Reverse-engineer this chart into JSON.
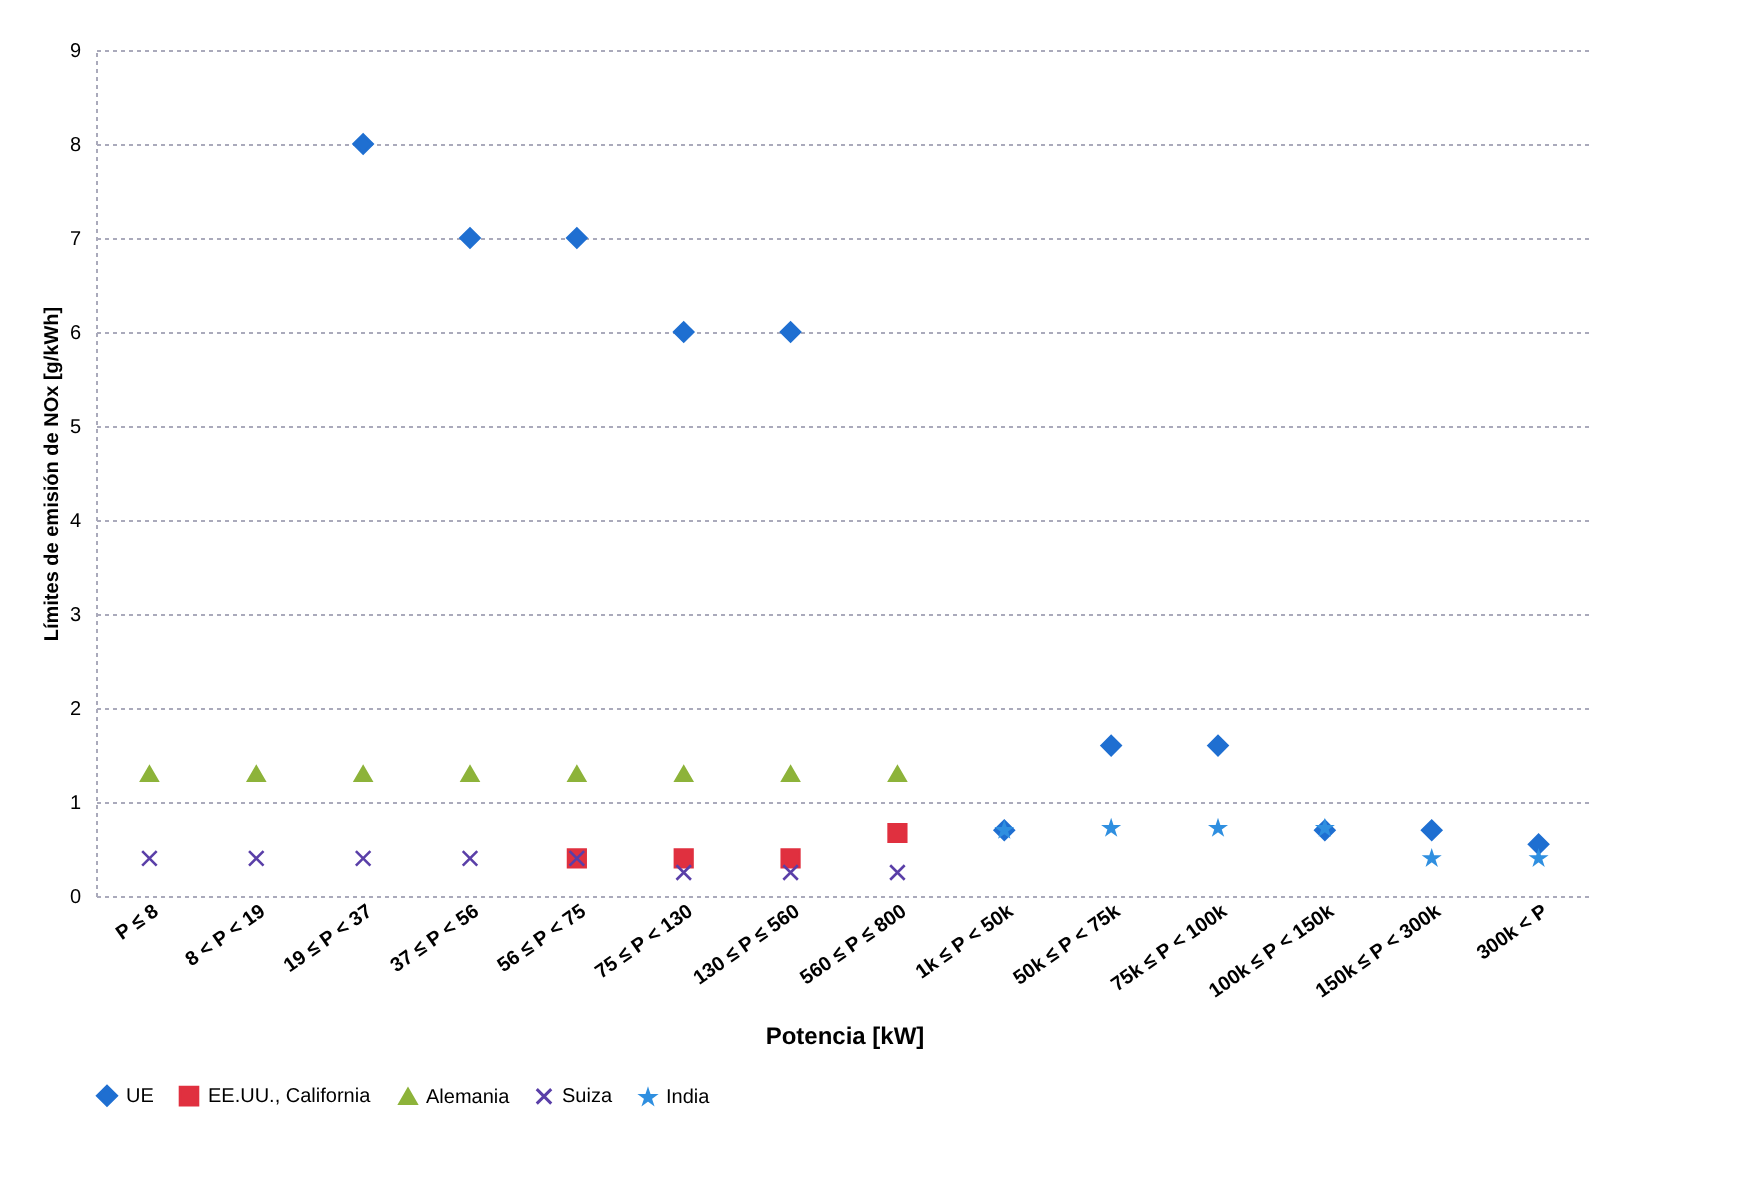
{
  "chart_data": {
    "type": "scatter",
    "xlabel": "Potencia [kW]",
    "ylabel": "Límites de emisión de NOx [g/kWh]",
    "categories": [
      "P ≤ 8",
      "8 < P < 19",
      "19 ≤ P < 37",
      "37 ≤ P < 56",
      "56 ≤ P < 75",
      "75 ≤ P < 130",
      "130 ≤ P ≤ 560",
      "560 ≤ P ≤ 800",
      "1k ≤ P < 50k",
      "50k ≤ P < 75k",
      "75k ≤ P < 100k",
      "100k ≤ P < 150k",
      "150k ≤ P < 300k",
      "300k < P"
    ],
    "series": [
      {
        "name": "UE",
        "color": "#1f6fd1",
        "marker": "diamond",
        "values": [
          null,
          null,
          8,
          7,
          7,
          6,
          6,
          null,
          0.7,
          1.6,
          1.6,
          0.7,
          0.7,
          0.55
        ]
      },
      {
        "name": "EE.UU., California",
        "color": "#e0303f",
        "marker": "square",
        "values": [
          null,
          null,
          null,
          null,
          0.4,
          0.4,
          0.4,
          0.67,
          null,
          null,
          null,
          null,
          null,
          null
        ]
      },
      {
        "name": "Alemania",
        "color": "#8db33a",
        "marker": "triangle",
        "values": [
          1.3,
          1.3,
          1.3,
          1.3,
          1.3,
          1.3,
          1.3,
          1.3,
          null,
          null,
          null,
          null,
          null,
          null
        ]
      },
      {
        "name": "Suiza",
        "color": "#5a3fa8",
        "marker": "cross",
        "values": [
          0.4,
          0.4,
          0.4,
          0.4,
          0.4,
          0.25,
          0.25,
          0.25,
          null,
          null,
          null,
          null,
          null,
          null
        ]
      },
      {
        "name": "India",
        "color": "#2f8fe0",
        "marker": "star",
        "values": [
          null,
          null,
          null,
          null,
          null,
          null,
          null,
          null,
          0.7,
          0.72,
          0.72,
          0.72,
          0.4,
          0.4
        ]
      }
    ],
    "ylim": [
      0,
      9
    ],
    "yticks": [
      0,
      1,
      2,
      3,
      4,
      5,
      6,
      7,
      8,
      9
    ],
    "grid": "y",
    "legend": "bottom"
  }
}
